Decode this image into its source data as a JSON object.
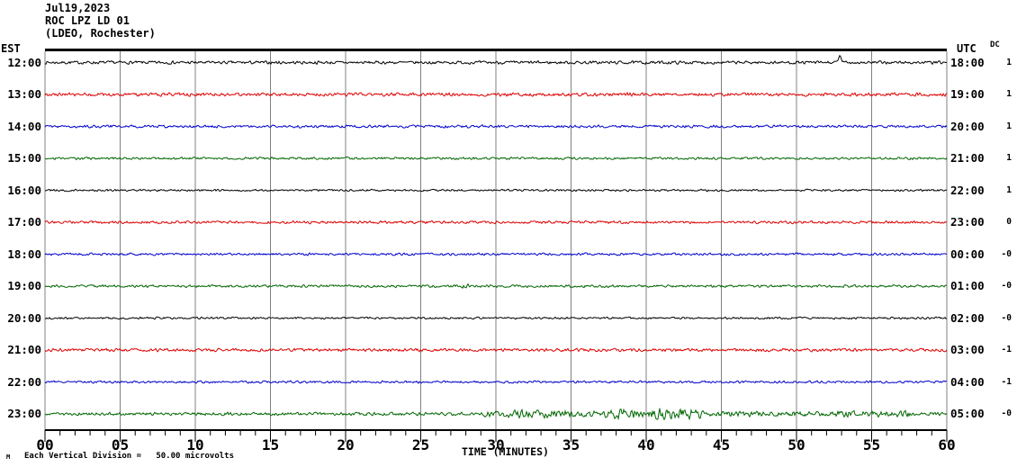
{
  "header": {
    "date": "Jul19,2023",
    "station": "ROC LPZ LD 01",
    "location": "(LDEO, Rochester)"
  },
  "axes": {
    "left_timezone_label": "EST",
    "right_timezone_label": "UTC",
    "dc_column_label": "DC",
    "x_axis_label": "TIME (MINUTES)",
    "x_ticks": [
      "00",
      "05",
      "10",
      "15",
      "20",
      "25",
      "30",
      "35",
      "40",
      "45",
      "50",
      "55",
      "60"
    ]
  },
  "footer": {
    "marker": "M",
    "scale_text": "Each Vertical Division =",
    "scale_value": "50.00 microvolts"
  },
  "chart_data": {
    "type": "line",
    "subtype": "seismogram-helicorder",
    "title": "ROC LPZ LD 01 (LDEO, Rochester) Jul19,2023",
    "xlabel": "TIME (MINUTES)",
    "x_range": [
      0,
      60
    ],
    "x_major_tick_interval_minutes": 5,
    "x_minor_tick_interval_minutes": 1,
    "grid": "vertical gray gridlines every 5 minutes",
    "legend": "none",
    "vertical_division_microvolts": 50.0,
    "colors": {
      "trace_cycle": [
        "#000000",
        "#dd0000",
        "#0000cc",
        "#006600"
      ],
      "grid": "#808080",
      "axis": "#000000",
      "background": "#ffffff"
    },
    "rows": [
      {
        "est": "12:00",
        "utc": "18:00",
        "dc": "1",
        "color": "#000000",
        "noise_amp": 1.8,
        "events": [
          {
            "type": "spike",
            "min": 52.9,
            "amp": 6.5
          }
        ]
      },
      {
        "est": "13:00",
        "utc": "19:00",
        "dc": "1",
        "color": "#dd0000",
        "noise_amp": 2.0,
        "events": []
      },
      {
        "est": "14:00",
        "utc": "20:00",
        "dc": "1",
        "color": "#0000cc",
        "noise_amp": 1.6,
        "events": []
      },
      {
        "est": "15:00",
        "utc": "21:00",
        "dc": "1",
        "color": "#006600",
        "noise_amp": 1.4,
        "events": []
      },
      {
        "est": "16:00",
        "utc": "22:00",
        "dc": "1",
        "color": "#000000",
        "noise_amp": 1.2,
        "events": []
      },
      {
        "est": "17:00",
        "utc": "23:00",
        "dc": "0",
        "color": "#dd0000",
        "noise_amp": 1.6,
        "events": []
      },
      {
        "est": "18:00",
        "utc": "00:00",
        "dc": "-0",
        "color": "#0000cc",
        "noise_amp": 1.4,
        "events": []
      },
      {
        "est": "19:00",
        "utc": "01:00",
        "dc": "-0",
        "color": "#006600",
        "noise_amp": 1.5,
        "events": [
          {
            "type": "burst",
            "from": 27.0,
            "to": 29.0,
            "amp": 2.5
          }
        ]
      },
      {
        "est": "20:00",
        "utc": "02:00",
        "dc": "-0",
        "color": "#000000",
        "noise_amp": 1.2,
        "events": []
      },
      {
        "est": "21:00",
        "utc": "03:00",
        "dc": "-1",
        "color": "#dd0000",
        "noise_amp": 1.8,
        "events": []
      },
      {
        "est": "22:00",
        "utc": "04:00",
        "dc": "-1",
        "color": "#0000cc",
        "noise_amp": 1.3,
        "events": []
      },
      {
        "est": "23:00",
        "utc": "05:00",
        "dc": "-0",
        "color": "#006600",
        "noise_amp": 1.8,
        "events": [
          {
            "type": "burst",
            "from": 29.0,
            "to": 37.0,
            "amp": 4.5
          },
          {
            "type": "burst",
            "from": 37.0,
            "to": 40.0,
            "amp": 6.0
          },
          {
            "type": "burst",
            "from": 40.0,
            "to": 44.0,
            "amp": 7.0
          },
          {
            "type": "burst",
            "from": 44.0,
            "to": 52.0,
            "amp": 3.0
          },
          {
            "type": "burst",
            "from": 52.0,
            "to": 58.0,
            "amp": 4.0
          }
        ]
      }
    ]
  }
}
